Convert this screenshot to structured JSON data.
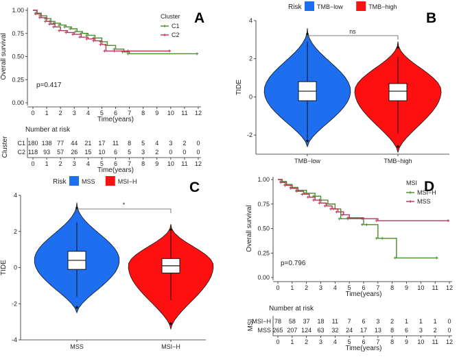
{
  "figure": {
    "panels": [
      "A",
      "B",
      "C",
      "D"
    ]
  },
  "chart_data": [
    {
      "id": "A",
      "type": "line",
      "subtype": "kaplan-meier",
      "xlabel": "Time(years)",
      "ylabel": "Overall survival",
      "xlim": [
        0,
        12
      ],
      "ylim": [
        0,
        1
      ],
      "x_ticks": [
        "0",
        "1",
        "2",
        "3",
        "4",
        "5",
        "6",
        "7",
        "8",
        "9",
        "10",
        "11",
        "12"
      ],
      "y_ticks": [
        "0.00",
        "0.25",
        "0.50",
        "0.75",
        "1.00"
      ],
      "legend_title": "Cluster",
      "legend_position": "top-right",
      "pvalue": "p=0.417",
      "series": [
        {
          "name": "C1",
          "color": "#4a8a2a",
          "x": [
            0,
            0.3,
            0.6,
            1.0,
            1.3,
            1.6,
            2.0,
            2.4,
            2.8,
            3.2,
            3.6,
            4.0,
            4.5,
            5.0,
            5.4,
            6.0,
            6.6,
            7.0,
            12
          ],
          "y": [
            1.0,
            0.97,
            0.94,
            0.91,
            0.88,
            0.86,
            0.84,
            0.82,
            0.8,
            0.77,
            0.75,
            0.73,
            0.7,
            0.66,
            0.62,
            0.58,
            0.55,
            0.53,
            0.53
          ]
        },
        {
          "name": "C2",
          "color": "#b8325a",
          "x": [
            0,
            0.3,
            0.6,
            1.0,
            1.3,
            1.6,
            2.0,
            2.5,
            3.0,
            3.5,
            4.0,
            4.5,
            5.0,
            5.3,
            6.0,
            7.0,
            10
          ],
          "y": [
            1.0,
            0.96,
            0.92,
            0.88,
            0.85,
            0.82,
            0.78,
            0.76,
            0.74,
            0.71,
            0.69,
            0.67,
            0.63,
            0.56,
            0.56,
            0.56,
            0.56
          ]
        }
      ],
      "risk_table": {
        "title": "Number at risk",
        "ylabel": "Cluster",
        "xlabel": "Time(years)",
        "x_ticks": [
          "0",
          "1",
          "2",
          "3",
          "4",
          "5",
          "6",
          "7",
          "8",
          "9",
          "10",
          "11",
          "12"
        ],
        "rows": [
          {
            "label": "C1",
            "color": "#4a8a2a",
            "values": [
              "180",
              "138",
              "77",
              "44",
              "21",
              "17",
              "11",
              "8",
              "5",
              "4",
              "3",
              "2",
              "0"
            ]
          },
          {
            "label": "C2",
            "color": "#b8325a",
            "values": [
              "118",
              "93",
              "57",
              "26",
              "15",
              "10",
              "6",
              "5",
              "3",
              "2",
              "0",
              "0",
              "0"
            ]
          }
        ]
      }
    },
    {
      "id": "B",
      "type": "violin",
      "legend_title": "Risk",
      "legend_position": "top",
      "ylabel": "TIDE",
      "ylim": [
        -3,
        4
      ],
      "y_ticks": [
        "-2",
        "0",
        "2",
        "4"
      ],
      "categories": [
        "TMB−low",
        "TMB−high"
      ],
      "colors": [
        "#1e6ff0",
        "#ff1010"
      ],
      "medians": [
        0.3,
        0.3
      ],
      "q1": [
        -0.2,
        -0.2
      ],
      "q3": [
        0.8,
        0.7
      ],
      "whisker_low": [
        -2.2,
        -1.9
      ],
      "whisker_high": [
        2.9,
        2.1
      ],
      "min": [
        -2.6,
        -2.9
      ],
      "max": [
        3.6,
        2.9
      ],
      "significance": "ns"
    },
    {
      "id": "C",
      "type": "violin",
      "legend_title": "Risk",
      "legend_position": "top",
      "ylabel": "TIDE",
      "ylim": [
        -4,
        4
      ],
      "y_ticks": [
        "-4",
        "-2",
        "0",
        "2",
        "4"
      ],
      "categories": [
        "MSS",
        "MSI−H"
      ],
      "colors": [
        "#1e6ff0",
        "#ff1010"
      ],
      "medians": [
        0.4,
        0.1
      ],
      "q1": [
        -0.1,
        -0.3
      ],
      "q3": [
        0.9,
        0.5
      ],
      "whisker_low": [
        -1.6,
        -1.8
      ],
      "whisker_high": [
        2.5,
        2.0
      ],
      "min": [
        -2.5,
        -3.4
      ],
      "max": [
        3.6,
        2.4
      ],
      "significance": "*"
    },
    {
      "id": "D",
      "type": "line",
      "subtype": "kaplan-meier",
      "xlabel": "Time(years)",
      "ylabel": "Overall survival",
      "xlim": [
        0,
        12
      ],
      "ylim": [
        0,
        1
      ],
      "x_ticks": [
        "0",
        "1",
        "2",
        "3",
        "4",
        "5",
        "6",
        "7",
        "8",
        "9",
        "10",
        "11",
        "12"
      ],
      "y_ticks": [
        "0.00",
        "0.25",
        "0.50",
        "0.75",
        "1.00"
      ],
      "legend_title": "MSI",
      "legend_position": "top-right",
      "pvalue": "p=0.796",
      "series": [
        {
          "name": "MSI−H",
          "color": "#4a8a2a",
          "x": [
            0,
            0.3,
            0.6,
            1.0,
            1.4,
            2.0,
            2.6,
            3.0,
            3.5,
            4.0,
            4.4,
            5.0,
            6.0,
            6.3,
            7.0,
            7.4,
            8.3,
            11.2
          ],
          "y": [
            1.0,
            0.98,
            0.95,
            0.92,
            0.89,
            0.86,
            0.83,
            0.79,
            0.75,
            0.7,
            0.6,
            0.6,
            0.54,
            0.54,
            0.4,
            0.4,
            0.2,
            0.2
          ]
        },
        {
          "name": "MSS",
          "color": "#b8325a",
          "x": [
            0,
            0.3,
            0.6,
            1.0,
            1.4,
            1.8,
            2.2,
            2.6,
            3.0,
            3.4,
            3.8,
            4.2,
            4.6,
            5.0,
            6.0,
            7.0,
            12
          ],
          "y": [
            1.0,
            0.97,
            0.94,
            0.91,
            0.88,
            0.85,
            0.82,
            0.79,
            0.76,
            0.73,
            0.7,
            0.67,
            0.64,
            0.61,
            0.6,
            0.58,
            0.58
          ]
        }
      ],
      "risk_table": {
        "title": "Number at risk",
        "ylabel": "MSI",
        "xlabel": "Time(years)",
        "x_ticks": [
          "0",
          "1",
          "2",
          "3",
          "4",
          "5",
          "6",
          "7",
          "8",
          "9",
          "10",
          "11",
          "12"
        ],
        "rows": [
          {
            "label": "MSI−H",
            "color": "#4a8a2a",
            "values": [
              "78",
              "58",
              "37",
              "18",
              "11",
              "7",
              "6",
              "3",
              "2",
              "1",
              "1",
              "1",
              "0"
            ]
          },
          {
            "label": "MSS",
            "color": "#b8325a",
            "values": [
              "265",
              "207",
              "124",
              "63",
              "32",
              "24",
              "17",
              "13",
              "8",
              "6",
              "3",
              "2",
              "0"
            ]
          }
        ]
      }
    }
  ]
}
